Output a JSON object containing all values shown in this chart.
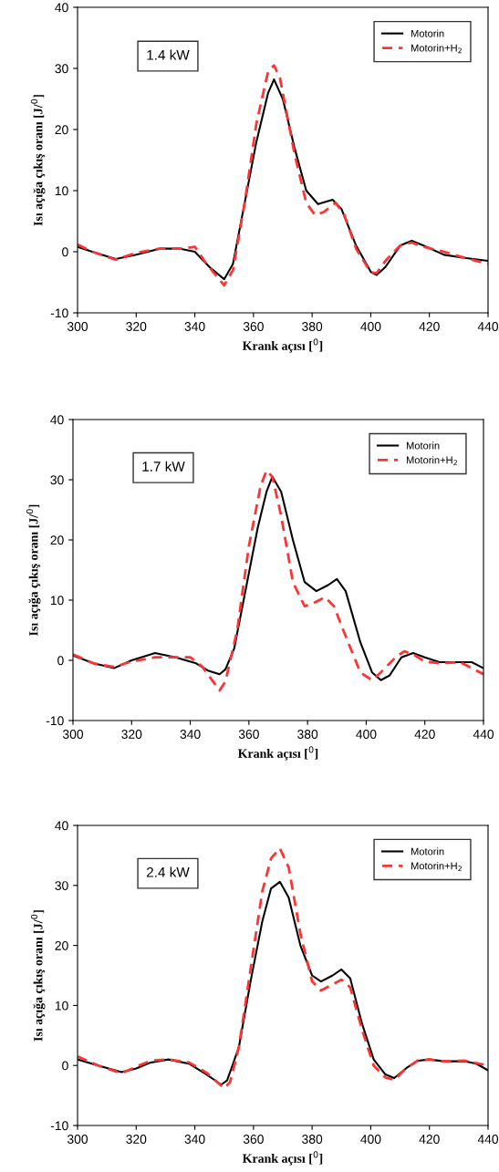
{
  "chart_data": [
    {
      "type": "line",
      "xlabel": "Krank açısı [$^{0}$]",
      "ylabel": "Isı açığa çıkış oranı [J/$^{0}$]",
      "annotations": [
        "1.4 kW"
      ],
      "xlim": [
        300,
        440
      ],
      "xticks": [
        300,
        320,
        340,
        360,
        380,
        400,
        420,
        440
      ],
      "ylim": [
        -10,
        40
      ],
      "yticks": [
        -10,
        0,
        10,
        20,
        30,
        40
      ],
      "grid": false,
      "legend": "top right",
      "series": [
        {
          "name": "Motorin",
          "color": "#000000",
          "line_style": "solid",
          "x": [
            300,
            305,
            313,
            320,
            328,
            335,
            340,
            345,
            350,
            353,
            357,
            361,
            365,
            367,
            370,
            374,
            378,
            382,
            387,
            390,
            395,
            400,
            402,
            405,
            410,
            414,
            418,
            425,
            432,
            440
          ],
          "values": [
            0.8,
            0,
            -1.2,
            -0.5,
            0.5,
            0.5,
            0,
            -2.5,
            -4.5,
            -2,
            8,
            18,
            26,
            28.2,
            25,
            17,
            10,
            7.8,
            8.5,
            7,
            1,
            -3.3,
            -3.8,
            -2.5,
            1,
            1.8,
            1,
            -0.5,
            -1,
            -1.5
          ]
        },
        {
          "name": "Motorin+H$_{2}$",
          "color": "#ff3333",
          "line_style": "dashed",
          "x": [
            300,
            305,
            313,
            320,
            328,
            335,
            340,
            344,
            350,
            353,
            357,
            361,
            365,
            367,
            369,
            374,
            378,
            381,
            384,
            388,
            391,
            395,
            400,
            402,
            405,
            410,
            414,
            418,
            425,
            432,
            440
          ],
          "values": [
            1.2,
            0,
            -1.3,
            -0.2,
            0.5,
            0.5,
            0.8,
            -2,
            -5.5,
            -3,
            8,
            21,
            29.5,
            30.5,
            28.5,
            16,
            8,
            6,
            6.5,
            8,
            6,
            0.5,
            -3.4,
            -3.5,
            -1.5,
            1,
            1.5,
            0.8,
            0,
            -1,
            -2
          ]
        }
      ]
    },
    {
      "type": "line",
      "xlabel": "Krank açısı [$^{0}$]",
      "ylabel": "Isı açığa çıkış oranı [J/$^{0}$]",
      "annotations": [
        "1.7 kW"
      ],
      "xlim": [
        300,
        440
      ],
      "xticks": [
        300,
        320,
        340,
        360,
        380,
        400,
        420,
        440
      ],
      "ylim": [
        -10,
        40
      ],
      "yticks": [
        -10,
        0,
        10,
        20,
        30,
        40
      ],
      "grid": false,
      "legend": "top right",
      "series": [
        {
          "name": "Motorin",
          "color": "#000000",
          "line_style": "solid",
          "x": [
            300,
            307,
            314,
            320,
            328,
            335,
            342,
            346,
            350,
            352,
            355,
            359,
            363,
            366,
            368,
            371,
            375,
            379,
            383,
            387,
            390,
            393,
            398,
            402,
            405,
            408,
            412,
            416,
            420,
            425,
            432,
            436,
            440
          ],
          "values": [
            0.8,
            -0.5,
            -1.3,
            0,
            1.2,
            0.5,
            -0.5,
            -1.7,
            -2.3,
            -1.5,
            2,
            12,
            22,
            28,
            30.5,
            28,
            20,
            13,
            11.5,
            12.5,
            13.5,
            11.5,
            3,
            -2,
            -3.3,
            -2.5,
            0.5,
            1.2,
            0.5,
            -0.3,
            -0.3,
            -0.3,
            -1.3
          ]
        },
        {
          "name": "Motorin+H$_{2}$",
          "color": "#ff3333",
          "line_style": "dashed",
          "x": [
            300,
            307,
            314,
            320,
            328,
            335,
            340,
            344,
            350,
            352,
            356,
            360,
            364,
            366,
            368,
            371,
            375,
            379,
            382,
            386,
            389,
            393,
            398,
            402,
            405,
            410,
            413,
            416,
            420,
            425,
            432,
            440
          ],
          "values": [
            1,
            -0.5,
            -1.1,
            -0.2,
            0.5,
            0.5,
            0.5,
            -1,
            -5,
            -3.5,
            5,
            19,
            29,
            31.5,
            30.5,
            24,
            13,
            9,
            9.5,
            10.5,
            9,
            4,
            -2,
            -3.3,
            -2,
            0.5,
            1.5,
            1,
            -0.2,
            -0.5,
            -0.3,
            -2.3
          ]
        }
      ]
    },
    {
      "type": "line",
      "xlabel": "Krank açısı [$^{0}$]",
      "ylabel": "Isı açığa çıkış oranı [J/$^{0}$]",
      "annotations": [
        "2.4 kW"
      ],
      "xlim": [
        300,
        440
      ],
      "xticks": [
        300,
        320,
        340,
        360,
        380,
        400,
        420,
        440
      ],
      "ylim": [
        -10,
        40
      ],
      "yticks": [
        -10,
        0,
        10,
        20,
        30,
        40
      ],
      "grid": false,
      "legend": "top right",
      "series": [
        {
          "name": "Motorin",
          "color": "#000000",
          "line_style": "solid",
          "x": [
            300,
            307,
            315,
            320,
            325,
            331,
            338,
            344,
            349,
            351,
            355,
            359,
            363,
            366,
            369,
            372,
            376,
            380,
            383,
            387,
            390,
            393,
            397,
            401,
            405,
            408,
            412,
            416,
            420,
            425,
            432,
            436,
            440
          ],
          "values": [
            1,
            0,
            -1.1,
            -0.5,
            0.5,
            1,
            0.3,
            -1.5,
            -3.2,
            -2.5,
            3,
            14,
            24,
            29.5,
            30.6,
            28,
            20,
            15,
            14,
            15,
            16,
            14.5,
            7,
            1,
            -1.5,
            -2.1,
            -0.5,
            0.8,
            1,
            0.7,
            0.7,
            0.3,
            -0.8
          ]
        },
        {
          "name": "Motorin+H$_{2}$",
          "color": "#ff3333",
          "line_style": "dashed",
          "x": [
            300,
            307,
            315,
            320,
            325,
            331,
            338,
            344,
            350,
            352,
            355,
            359,
            363,
            366,
            369,
            372,
            376,
            380,
            383,
            387,
            390,
            393,
            397,
            401,
            405,
            408,
            412,
            416,
            420,
            425,
            432,
            440
          ],
          "values": [
            1.5,
            0,
            -1.3,
            -0.2,
            0.8,
            1,
            0.5,
            -1.2,
            -3.8,
            -2.8,
            3,
            16,
            29,
            34.5,
            36.2,
            33,
            22,
            14,
            12.5,
            13.5,
            14.3,
            13,
            6,
            0,
            -2,
            -2.4,
            -0.5,
            0.8,
            1,
            0.7,
            0.8,
            0
          ]
        }
      ]
    }
  ]
}
